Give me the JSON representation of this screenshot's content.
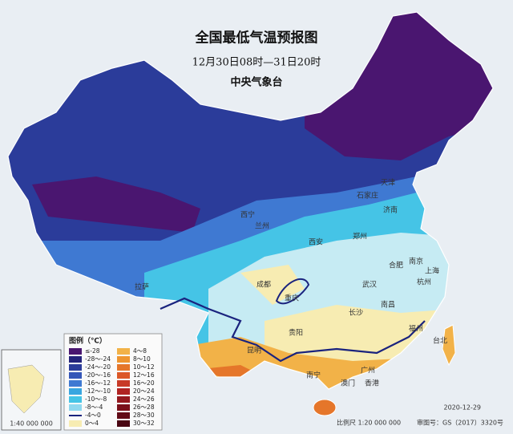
{
  "header": {
    "title": "全国最低气温预报图",
    "period": "12月30日08时—31日20时",
    "agency": "中央气象台"
  },
  "legend": {
    "title": "图例（℃）",
    "items": [
      {
        "label": "≤-28",
        "color": "#4a1670"
      },
      {
        "label": "-28～-24",
        "color": "#24237a"
      },
      {
        "label": "-24～-20",
        "color": "#2b3c9a"
      },
      {
        "label": "-20～-16",
        "color": "#3556b8"
      },
      {
        "label": "-16～-12",
        "color": "#3f79d2"
      },
      {
        "label": "-12～-10",
        "color": "#39a6e0"
      },
      {
        "label": "-10～-8",
        "color": "#45c4e6"
      },
      {
        "label": "-8～-4",
        "color": "#8fd8ef"
      },
      {
        "label": "-4～0",
        "color": "#c6ebf3"
      },
      {
        "label": "0～4",
        "color": "#f7ecb2"
      },
      {
        "label": "4～8",
        "color": "#f2b248"
      },
      {
        "label": "8～10",
        "color": "#ee9530"
      },
      {
        "label": "10～12",
        "color": "#e5762a"
      },
      {
        "label": "12～16",
        "color": "#dc5726"
      },
      {
        "label": "16～20",
        "color": "#c83a27"
      },
      {
        "label": "20～24",
        "color": "#b02322"
      },
      {
        "label": "24～26",
        "color": "#94181e"
      },
      {
        "label": "26～28",
        "color": "#7a0f1a"
      },
      {
        "label": "28～30",
        "color": "#620a16"
      },
      {
        "label": "30～32",
        "color": "#4a0612"
      }
    ]
  },
  "cities": [
    "成都",
    "重庆",
    "贵阳",
    "昆明",
    "拉萨",
    "西宁",
    "兰州",
    "西安",
    "郑州",
    "济南",
    "石家庄",
    "天津",
    "南京",
    "合肥",
    "上海",
    "杭州",
    "武汉",
    "长沙",
    "南昌",
    "福州",
    "台北",
    "广州",
    "香港",
    "澳门",
    "南宁"
  ],
  "footer": {
    "date": "2020-12-29",
    "scale": "比例尺 1:20 000 000",
    "map_number": "审图号：GS（2017）3320号",
    "inset_scale": "1:40 000 000"
  }
}
